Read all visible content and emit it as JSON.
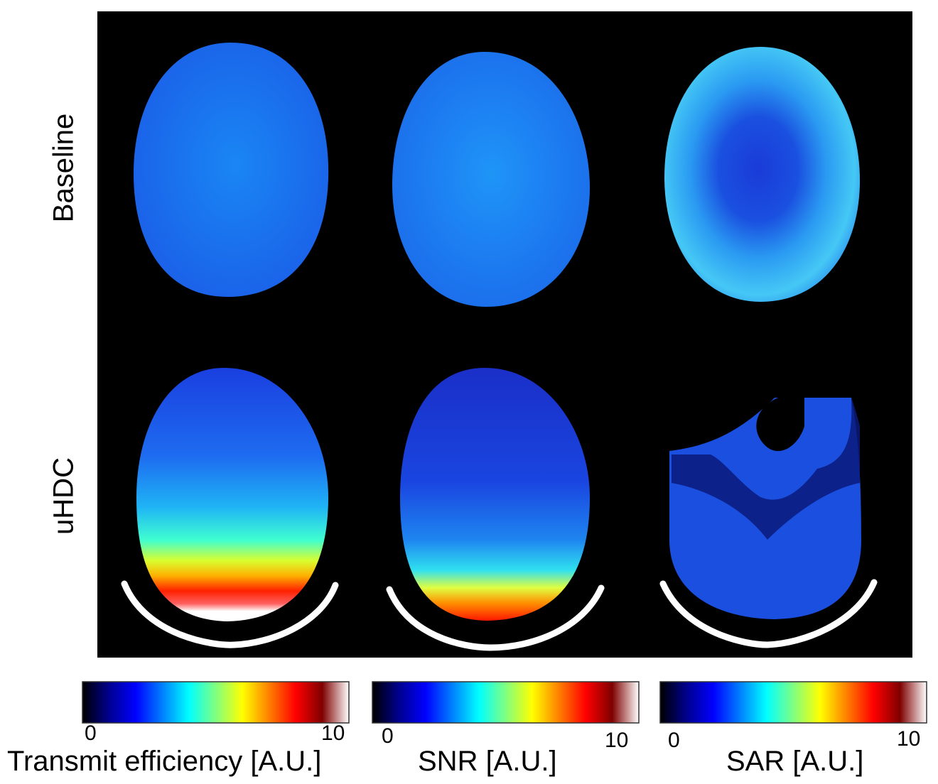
{
  "rows": [
    "Baseline",
    "uHDC"
  ],
  "colorbars": [
    {
      "min_label": "0",
      "max_label": "10",
      "title": "Transmit efficiency [A.U.]"
    },
    {
      "min_label": "0",
      "max_label": "10",
      "title": "SNR [A.U.]"
    },
    {
      "min_label": "0",
      "max_label": "10",
      "title": "SAR [A.U.]"
    }
  ],
  "colormap": "jet",
  "colormap_stops": [
    "#000000",
    "#00008f",
    "#0000ff",
    "#0080ff",
    "#00ffff",
    "#80ff80",
    "#ffff00",
    "#ff8000",
    "#ff0000",
    "#800000",
    "#ffffff"
  ],
  "colors": {
    "background": "#000000",
    "coil_arc": "#ffffff"
  }
}
